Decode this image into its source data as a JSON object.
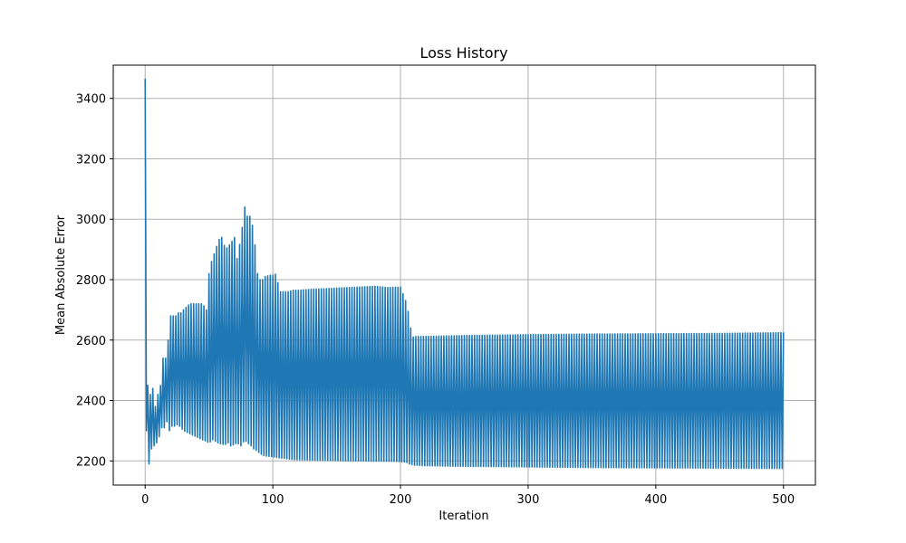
{
  "chart_data": {
    "type": "line",
    "title": "Loss History",
    "xlabel": "Iteration",
    "ylabel": "Mean Absolute Error",
    "xlim": [
      -25,
      525
    ],
    "ylim": [
      2120,
      3510
    ],
    "xticks": [
      0,
      100,
      200,
      300,
      400,
      500
    ],
    "yticks": [
      2200,
      2400,
      2600,
      2800,
      3000,
      3200,
      3400
    ],
    "grid": true,
    "legend": "none",
    "colors": {
      "line": "#1f77b4",
      "grid": "#b0b0b0",
      "axes": "#000000"
    },
    "series": [
      {
        "description_points_note_excluded": true,
        "x": [
          0,
          1,
          2,
          3,
          4,
          5,
          6,
          7,
          8,
          9,
          10,
          11,
          12,
          13,
          14,
          15,
          16,
          17,
          18,
          19,
          20,
          22,
          24,
          26,
          28,
          30,
          35,
          40,
          45,
          48,
          50,
          53,
          55,
          57,
          60,
          63,
          65,
          67,
          70,
          72,
          75,
          78,
          80,
          83,
          85,
          87,
          88,
          89,
          90,
          91,
          92,
          93,
          95,
          97,
          100,
          103,
          105,
          110,
          113,
          115,
          120,
          130,
          140,
          150,
          160,
          170,
          180,
          190,
          200,
          205,
          207,
          209,
          210,
          211,
          213,
          215,
          220,
          250,
          300,
          350,
          400,
          450,
          490,
          500
        ],
        "upper": [
          3465,
          2300,
          2450,
          2440,
          2420,
          2380,
          2440,
          2390,
          2380,
          2400,
          2420,
          2410,
          2450,
          2460,
          2540,
          2520,
          2540,
          2550,
          2600,
          2610,
          2680,
          2680,
          2680,
          2690,
          2690,
          2700,
          2720,
          2720,
          2720,
          2700,
          2820,
          2880,
          2890,
          2930,
          2940,
          2900,
          2910,
          2920,
          2940,
          2870,
          2940,
          3040,
          3010,
          3010,
          2950,
          2880,
          2820,
          2800,
          2800,
          2800,
          2800,
          2810,
          2810,
          2815,
          2815,
          2820,
          2760,
          2760,
          2760,
          2765,
          2765,
          2768,
          2770,
          2772,
          2774,
          2776,
          2778,
          2774,
          2775,
          2720,
          2670,
          2610,
          2610,
          2612,
          2612,
          2612,
          2612,
          2615,
          2618,
          2620,
          2621,
          2622,
          2624,
          2625
        ],
        "lower": [
          3465,
          2300,
          2210,
          2190,
          2200,
          2240,
          2220,
          2250,
          2230,
          2260,
          2290,
          2280,
          2290,
          2310,
          2300,
          2310,
          2320,
          2330,
          2330,
          2300,
          2320,
          2310,
          2320,
          2320,
          2310,
          2300,
          2290,
          2280,
          2270,
          2265,
          2260,
          2270,
          2265,
          2260,
          2255,
          2255,
          2260,
          2250,
          2255,
          2260,
          2250,
          2270,
          2260,
          2250,
          2240,
          2235,
          2230,
          2228,
          2225,
          2222,
          2220,
          2218,
          2216,
          2215,
          2214,
          2212,
          2210,
          2208,
          2206,
          2205,
          2204,
          2203,
          2202,
          2201,
          2200,
          2200,
          2199,
          2199,
          2198,
          2195,
          2190,
          2188,
          2186,
          2186,
          2186,
          2185,
          2184,
          2182,
          2180,
          2178,
          2177,
          2176,
          2175,
          2175
        ]
      }
    ]
  }
}
